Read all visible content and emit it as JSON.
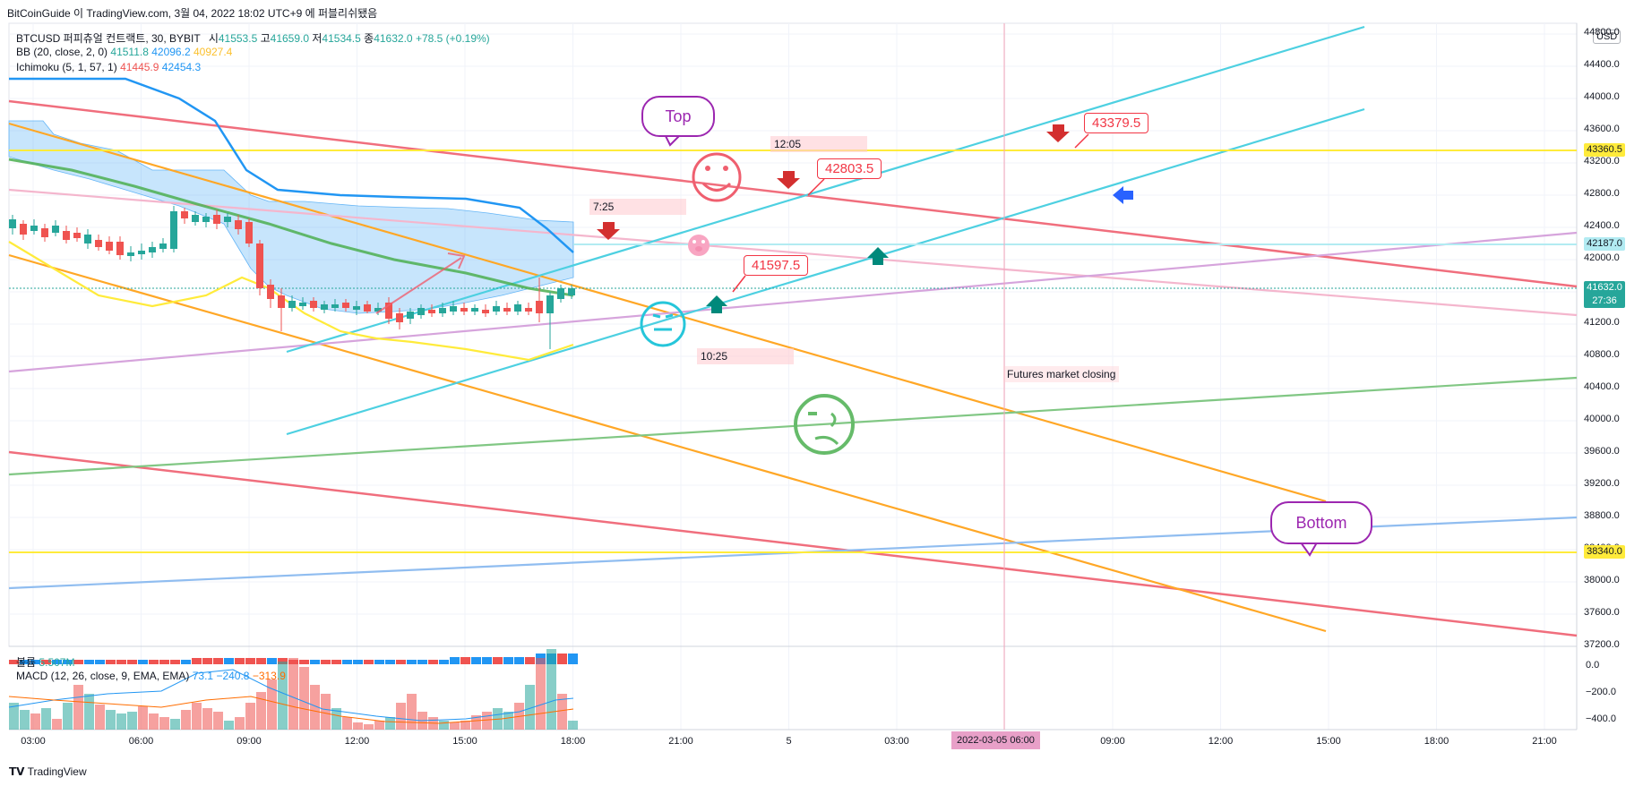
{
  "page_header": "BitCoinGuide 이 TradingView.com, 3월 04, 2022 18:02 UTC+9 에 퍼블리쉬됐음",
  "symbol_line": {
    "symbol": "BTCUSD 퍼피츄얼 컨트랙트, 30, BYBIT",
    "open_label": "시",
    "open": "41553.5",
    "high_label": "고",
    "high": "41659.0",
    "low_label": "저",
    "low": "41534.5",
    "close_label": "종",
    "close": "41632.0",
    "change": "+78.5 (+0.19%)"
  },
  "bb_line": {
    "label": "BB (20, close, 2, 0)",
    "v1": "41511.8",
    "v2": "42096.2",
    "v3": "40927.4"
  },
  "ichimoku_line": {
    "label": "Ichimoku (5, 1, 57, 1)",
    "v1": "41445.9",
    "v2": "42454.3"
  },
  "volume_line": {
    "label": "볼륨",
    "value": "5.507M"
  },
  "macd_line": {
    "label": "MACD (12, 26, close, 9, EMA, EMA)",
    "v1": "73.1",
    "v2": "−240.8",
    "v3": "−313.9"
  },
  "currency": "USD",
  "price_axis": [
    "44800.0",
    "44400.0",
    "44000.0",
    "43600.0",
    "43200.0",
    "42800.0",
    "42400.0",
    "42000.0",
    "41600.0",
    "41200.0",
    "40800.0",
    "40400.0",
    "40000.0",
    "39600.0",
    "39200.0",
    "38800.0",
    "38400.0",
    "38000.0",
    "37600.0",
    "37200.0"
  ],
  "macd_axis": [
    "0.0",
    "−200.0",
    "−400.0"
  ],
  "price_tags": {
    "upper_yellow": "43360.5",
    "cyan_level": "42187.0",
    "last_price": "41632.0",
    "countdown": "27:36",
    "lower_yellow": "38340.0"
  },
  "time_axis": [
    "03:00",
    "06:00",
    "09:00",
    "12:00",
    "15:00",
    "18:00",
    "21:00",
    "5",
    "03:00",
    "06:00",
    "09:00",
    "12:00",
    "15:00",
    "18:00",
    "21:00"
  ],
  "time_pill": "2022-03-05   06:00",
  "annotations": {
    "top_bubble": "Top",
    "bottom_bubble": "Bottom",
    "callout_a": "42803.5",
    "callout_b": "43379.5",
    "callout_c": "41597.5",
    "time_a": "7:25",
    "time_b": "12:05",
    "time_c": "10:25",
    "futures_note": "Futures market closing"
  },
  "footer": "TradingView",
  "colors": {
    "up": "#26a69a",
    "down": "#ef5350",
    "cyan": "#4dd0e1",
    "yellow": "#ffeb3b",
    "orange": "#ffa726",
    "red": "#ef5f6f",
    "green": "#66bb6a",
    "blue": "#2196f3",
    "purple": "#9c27b0"
  }
}
